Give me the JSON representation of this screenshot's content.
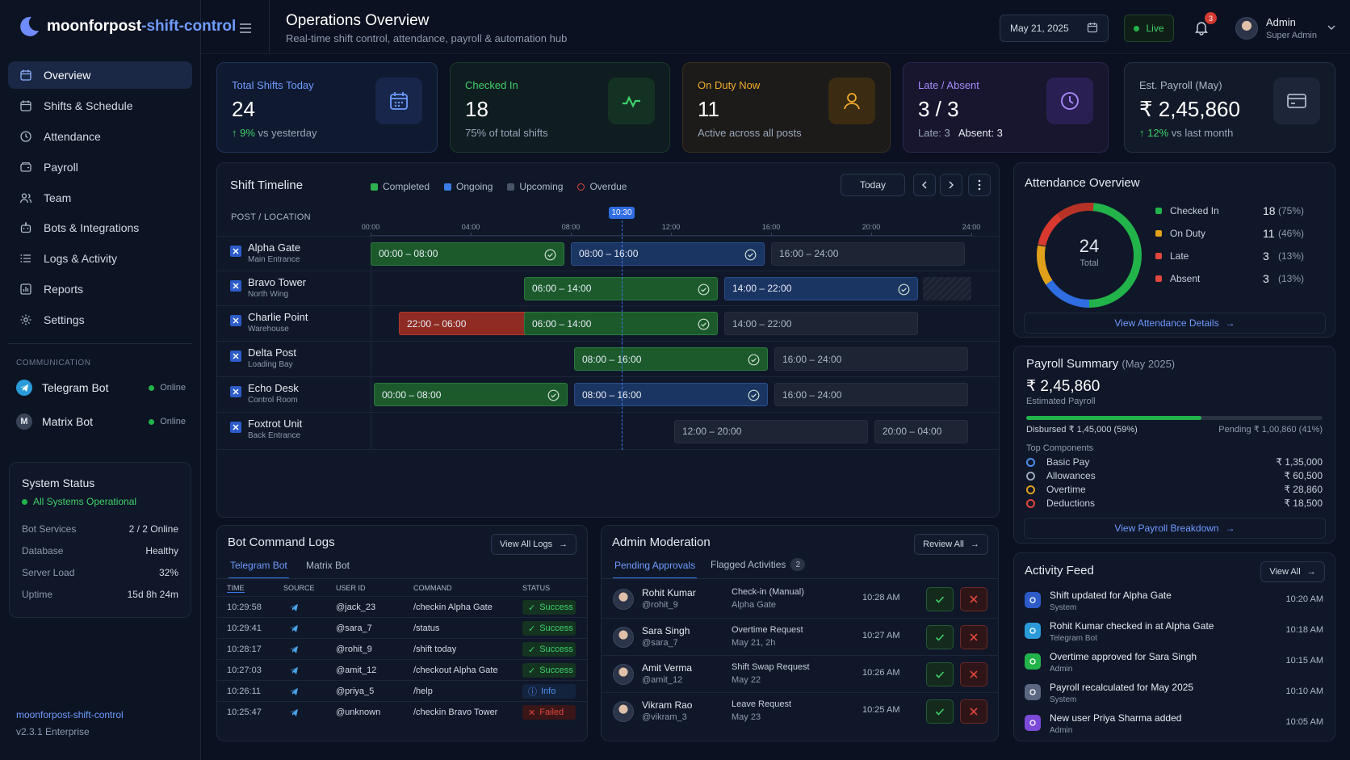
{
  "app": {
    "name_part1": "moonforpost",
    "name_part2": "-shift-control",
    "version_name": "moonforpost-shift-control",
    "version": "v2.3.1 Enterprise"
  },
  "header": {
    "title": "Operations Overview",
    "subtitle": "Real-time shift control, attendance, payroll & automation hub",
    "date": "May 21, 2025",
    "live": "Live",
    "notif_count": "3",
    "user_name": "Admin",
    "user_role": "Super Admin"
  },
  "sidebar": {
    "items": [
      {
        "label": "Overview",
        "icon": "grid-calendar-icon"
      },
      {
        "label": "Shifts & Schedule",
        "icon": "calendar-icon"
      },
      {
        "label": "Attendance",
        "icon": "clock-icon"
      },
      {
        "label": "Payroll",
        "icon": "wallet-icon"
      },
      {
        "label": "Team",
        "icon": "users-icon"
      },
      {
        "label": "Bots & Integrations",
        "icon": "bot-icon"
      },
      {
        "label": "Logs & Activity",
        "icon": "list-icon"
      },
      {
        "label": "Reports",
        "icon": "chart-icon"
      },
      {
        "label": "Settings",
        "icon": "gear-icon"
      }
    ],
    "comm_heading": "COMMUNICATION",
    "bots": [
      {
        "label": "Telegram Bot",
        "status": "Online"
      },
      {
        "label": "Matrix Bot",
        "status": "Online"
      }
    ],
    "system": {
      "title": "System Status",
      "state": "All Systems Operational",
      "rows": [
        {
          "k": "Bot Services",
          "v": "2 / 2 Online"
        },
        {
          "k": "Database",
          "v": "Healthy"
        },
        {
          "k": "Server Load",
          "v": "32%"
        },
        {
          "k": "Uptime",
          "v": "15d 8h 24m"
        }
      ]
    }
  },
  "kpis": [
    {
      "title": "Total Shifts Today",
      "value": "24",
      "delta": "9%",
      "sub": "vs yesterday"
    },
    {
      "title": "Checked In",
      "value": "18",
      "sub": "75% of total shifts"
    },
    {
      "title": "On Duty Now",
      "value": "11",
      "sub": "Active across all posts"
    },
    {
      "title": "Late / Absent",
      "value": "3 / 3",
      "sub_a": "Late: 3",
      "sub_b": "Absent: 3"
    },
    {
      "title": "Est. Payroll (May)",
      "value": "₹ 2,45,860",
      "delta": "12%",
      "sub": "vs last month"
    }
  ],
  "timeline": {
    "title": "Shift Timeline",
    "legend": [
      "Completed",
      "Ongoing",
      "Upcoming",
      "Overdue"
    ],
    "today": "Today",
    "col_header": "POST / LOCATION",
    "now": "10:30",
    "ticks": [
      "00:00",
      "04:00",
      "08:00",
      "12:00",
      "16:00",
      "20:00",
      "24:00"
    ],
    "posts": [
      {
        "name": "Alpha Gate",
        "loc": "Main Entrance",
        "shifts": [
          "00:00 – 08:00",
          "08:00 – 16:00",
          "16:00 – 24:00"
        ]
      },
      {
        "name": "Bravo Tower",
        "loc": "North Wing",
        "shifts": [
          "06:00 – 14:00",
          "14:00 – 22:00"
        ]
      },
      {
        "name": "Charlie Point",
        "loc": "Warehouse",
        "shifts": [
          "22:00 – 06:00",
          "06:00 – 14:00",
          "14:00 – 22:00"
        ]
      },
      {
        "name": "Delta Post",
        "loc": "Loading Bay",
        "shifts": [
          "08:00 – 16:00",
          "16:00 – 24:00"
        ]
      },
      {
        "name": "Echo Desk",
        "loc": "Control Room",
        "shifts": [
          "00:00 – 08:00",
          "08:00 – 16:00",
          "16:00 – 24:00"
        ]
      },
      {
        "name": "Foxtrot Unit",
        "loc": "Back Entrance",
        "shifts": [
          "12:00 – 20:00",
          "20:00 – 04:00"
        ]
      }
    ]
  },
  "attendance": {
    "title": "Attendance Overview",
    "total": "24",
    "total_label": "Total",
    "items": [
      {
        "label": "Checked In",
        "value": "18",
        "pct": "(75%)",
        "color": "#22b34a"
      },
      {
        "label": "On Duty",
        "value": "11",
        "pct": "(46%)",
        "color": "#e0a019"
      },
      {
        "label": "Late",
        "value": "3",
        "pct": "(13%)",
        "color": "#e0473c"
      },
      {
        "label": "Absent",
        "value": "3",
        "pct": "(13%)",
        "color": "#e0473c"
      }
    ],
    "link": "View Attendance Details"
  },
  "payroll": {
    "title": "Payroll Summary",
    "period": "(May 2025)",
    "amount": "₹ 2,45,860",
    "amount_label": "Estimated Payroll",
    "disbursed": "Disbursed ₹ 1,45,000 (59%)",
    "pending": "Pending ₹ 1,00,860 (41%)",
    "disbursed_fraction": 0.59,
    "comp_title": "Top Components",
    "components": [
      {
        "label": "Basic Pay",
        "value": "₹ 1,35,000",
        "color": "#4d8ef0"
      },
      {
        "label": "Allowances",
        "value": "₹ 60,500",
        "color": "#9aa6ba"
      },
      {
        "label": "Overtime",
        "value": "₹ 28,860",
        "color": "#e0a019"
      },
      {
        "label": "Deductions",
        "value": "₹ 18,500",
        "color": "#e0473c"
      }
    ],
    "link": "View Payroll Breakdown"
  },
  "logs": {
    "title": "Bot Command Logs",
    "view_all": "View All Logs",
    "tabs": [
      "Telegram Bot",
      "Matrix Bot"
    ],
    "headers": [
      "TIME",
      "SOURCE",
      "USER ID",
      "COMMAND",
      "STATUS"
    ],
    "rows": [
      {
        "time": "10:29:58",
        "user": "@jack_23",
        "cmd": "/checkin Alpha Gate",
        "status": "Success"
      },
      {
        "time": "10:29:41",
        "user": "@sara_7",
        "cmd": "/status",
        "status": "Success"
      },
      {
        "time": "10:28:17",
        "user": "@rohit_9",
        "cmd": "/shift today",
        "status": "Success"
      },
      {
        "time": "10:27:03",
        "user": "@amit_12",
        "cmd": "/checkout Alpha Gate",
        "status": "Success"
      },
      {
        "time": "10:26:11",
        "user": "@priya_5",
        "cmd": "/help",
        "status": "Info"
      },
      {
        "time": "10:25:47",
        "user": "@unknown",
        "cmd": "/checkin Bravo Tower",
        "status": "Failed"
      }
    ]
  },
  "moderation": {
    "title": "Admin Moderation",
    "review_all": "Review All",
    "tab1": "Pending Approvals",
    "tab2": "Flagged Activities",
    "flag_count": "2",
    "rows": [
      {
        "name": "Rohit Kumar",
        "handle": "@rohit_9",
        "type": "Check-in (Manual)",
        "detail": "Alpha Gate",
        "time": "10:28 AM"
      },
      {
        "name": "Sara Singh",
        "handle": "@sara_7",
        "type": "Overtime Request",
        "detail": "May 21, 2h",
        "time": "10:27 AM"
      },
      {
        "name": "Amit Verma",
        "handle": "@amit_12",
        "type": "Shift Swap Request",
        "detail": "May 22",
        "time": "10:26 AM"
      },
      {
        "name": "Vikram Rao",
        "handle": "@vikram_3",
        "type": "Leave Request",
        "detail": "May 23",
        "time": "10:25 AM"
      }
    ]
  },
  "activity": {
    "title": "Activity Feed",
    "view_all": "View All",
    "items": [
      {
        "text": "Shift updated for Alpha Gate",
        "by": "System",
        "time": "10:20 AM",
        "color": "#2d5cc9"
      },
      {
        "text": "Rohit Kumar checked in at Alpha Gate",
        "by": "Telegram Bot",
        "time": "10:18 AM",
        "color": "#2a9bd8"
      },
      {
        "text": "Overtime approved for Sara Singh",
        "by": "Admin",
        "time": "10:15 AM",
        "color": "#22b34a"
      },
      {
        "text": "Payroll recalculated for May 2025",
        "by": "System",
        "time": "10:10 AM",
        "color": "#5b6680"
      },
      {
        "text": "New user Priya Sharma added",
        "by": "Admin",
        "time": "10:05 AM",
        "color": "#7c4ad8"
      }
    ]
  }
}
